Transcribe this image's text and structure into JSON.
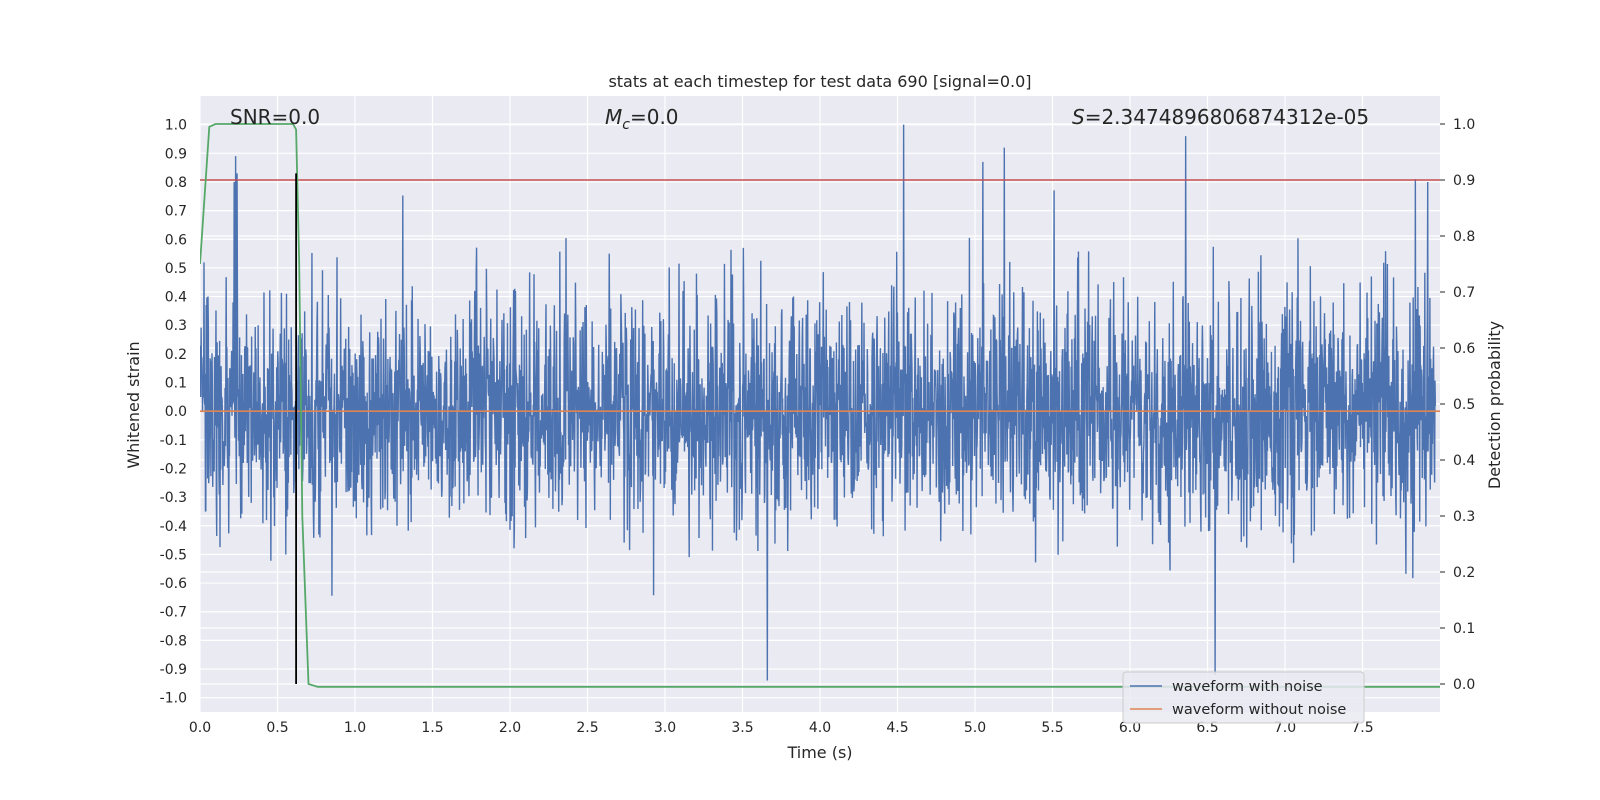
{
  "chart_data": {
    "type": "line",
    "title": "stats at each timestep for test data 690 [signal=0.0]",
    "xlabel": "Time (s)",
    "ylabel": "Whitened strain",
    "y2label": "Detection probability",
    "xlim": [
      0.0,
      8.0
    ],
    "ylim": [
      -1.05,
      1.1
    ],
    "y2lim": [
      -0.05,
      1.05
    ],
    "x_ticks": [
      "0.0",
      "0.5",
      "1.0",
      "1.5",
      "2.0",
      "2.5",
      "3.0",
      "3.5",
      "4.0",
      "4.5",
      "5.0",
      "5.5",
      "6.0",
      "6.5",
      "7.0",
      "7.5"
    ],
    "y_ticks": [
      "1.0",
      "0.9",
      "0.8",
      "0.7",
      "0.6",
      "0.5",
      "0.4",
      "0.3",
      "0.2",
      "0.1",
      "0.0",
      "-0.1",
      "-0.2",
      "-0.3",
      "-0.4",
      "-0.5",
      "-0.6",
      "-0.7",
      "-0.8",
      "-0.9",
      "-1.0"
    ],
    "y2_ticks": [
      "1.0",
      "0.9",
      "0.8",
      "0.7",
      "0.6",
      "0.5",
      "0.4",
      "0.3",
      "0.2",
      "0.1",
      "0.0"
    ],
    "grid": true,
    "legend_position": "lower-right",
    "annotations": {
      "snr": "SNR=0.0",
      "mc_symbol": "M",
      "mc_sub": "c",
      "mc_value": "=0.0",
      "s_symbol": "S",
      "s_value": "=2.3474896806874312e-05"
    },
    "series": [
      {
        "name": "waveform with noise",
        "color": "#4c72b0",
        "description_values": "dense noise samples, ~8192 points over 0–8 s, envelope roughly ±0.5, peaks up to ~1.0 and down to ~-0.95",
        "notable_peaks": [
          {
            "x": 0.22,
            "y": 0.8
          },
          {
            "x": 0.23,
            "y": 0.89
          },
          {
            "x": 0.24,
            "y": 0.83
          },
          {
            "x": 4.54,
            "y": 1.0
          },
          {
            "x": 5.05,
            "y": 0.87
          },
          {
            "x": 5.19,
            "y": 0.92
          },
          {
            "x": 6.36,
            "y": 0.96
          },
          {
            "x": 7.84,
            "y": 0.81
          },
          {
            "x": 7.92,
            "y": 0.8
          },
          {
            "x": 3.66,
            "y": -0.94
          },
          {
            "x": 6.55,
            "y": -0.92
          },
          {
            "x": 4.72,
            "y": -0.05
          }
        ]
      },
      {
        "name": "waveform without noise",
        "color": "#dd8452",
        "x": [
          0.0,
          8.0
        ],
        "y": [
          0.0,
          0.0
        ]
      },
      {
        "name": "detection probability",
        "color": "#55a868",
        "axis": "right",
        "x": [
          0.0,
          0.06,
          0.1,
          0.2,
          0.5,
          0.6,
          0.62,
          0.64,
          0.66,
          0.7,
          0.76,
          8.0
        ],
        "y": [
          0.75,
          0.995,
          1.0,
          1.0,
          1.0,
          1.0,
          0.99,
          0.75,
          0.3,
          0.0,
          -0.005,
          -0.005
        ]
      }
    ],
    "threshold_line": {
      "color": "#c44e52",
      "y_right": 0.9
    },
    "marker_line": {
      "color": "#000000",
      "x": 0.62
    }
  }
}
